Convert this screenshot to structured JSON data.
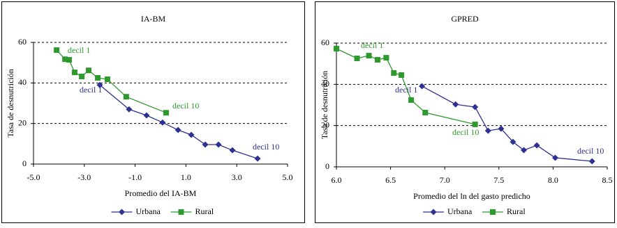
{
  "chart_data": [
    {
      "type": "line",
      "title": "IA-BM",
      "xlabel": "Promedio del IA-BM",
      "ylabel": "Tasa de desnutrición",
      "xlim": [
        -5,
        5
      ],
      "xticks": [
        {
          "value": -5,
          "label": "-5.0"
        },
        {
          "value": -3,
          "label": "-3.0"
        },
        {
          "value": -1,
          "label": "-1.0"
        },
        {
          "value": 1,
          "label": "1.0"
        },
        {
          "value": 3,
          "label": "3.0"
        },
        {
          "value": 5,
          "label": "5.0"
        }
      ],
      "ylim": [
        0,
        60
      ],
      "yticks": [
        0,
        20,
        40,
        60
      ],
      "grid": true,
      "series": [
        {
          "name": "Urbana",
          "color": "#2e3192",
          "marker": "diamond",
          "x": [
            -2.39,
            -1.24,
            -0.55,
            0.08,
            0.69,
            1.21,
            1.76,
            2.28,
            2.83,
            3.82
          ],
          "values": [
            39,
            27,
            24,
            20.5,
            16.8,
            14.4,
            9.6,
            9.6,
            6.8,
            2.7
          ]
        },
        {
          "name": "Rural",
          "color": "#2e9a2e",
          "marker": "square",
          "x": [
            -4.09,
            -3.76,
            -3.6,
            -3.38,
            -3.1,
            -2.83,
            -2.47,
            -2.09,
            -1.35,
            0.22
          ],
          "values": [
            56.2,
            51.7,
            51.4,
            45.2,
            43.2,
            46.2,
            42.5,
            41.8,
            33.2,
            25.3
          ]
        }
      ],
      "annotations": [
        "decil 1",
        "decil 1",
        "decil 10",
        "decil 10"
      ]
    },
    {
      "type": "line",
      "title": "GPRED",
      "xlabel": "Promedio del ln del gasto predicho",
      "ylabel": "Tasa de desnutrición",
      "xlim": [
        6,
        8.5
      ],
      "xticks": [
        {
          "value": 6,
          "label": "6.0"
        },
        6.5,
        {
          "value": 7,
          "label": "7.0"
        },
        7.5,
        {
          "value": 8,
          "label": "8.0"
        },
        8.5
      ],
      "ylim": [
        0,
        60
      ],
      "yticks": [
        0,
        20,
        40,
        60
      ],
      "grid": true,
      "series": [
        {
          "name": "Urbana",
          "color": "#2e3192",
          "marker": "diamond",
          "x": [
            6.79,
            7.1,
            7.28,
            7.4,
            7.52,
            7.63,
            7.73,
            7.85,
            8.02,
            8.36
          ],
          "values": [
            39.1,
            30.3,
            29,
            17.5,
            18.5,
            12.1,
            8.1,
            10.4,
            4.4,
            2.7
          ]
        },
        {
          "name": "Rural",
          "color": "#2e9a2e",
          "marker": "square",
          "x": [
            6,
            6.19,
            6.3,
            6.38,
            6.46,
            6.53,
            6.6,
            6.69,
            6.82,
            7.28
          ],
          "values": [
            57.3,
            52.6,
            53.9,
            51.9,
            52.9,
            45.5,
            44.5,
            32.4,
            26.3,
            20.6
          ]
        }
      ],
      "annotations": [
        "decil 1",
        "decil 1",
        "decil 10",
        "decil 10"
      ]
    }
  ]
}
